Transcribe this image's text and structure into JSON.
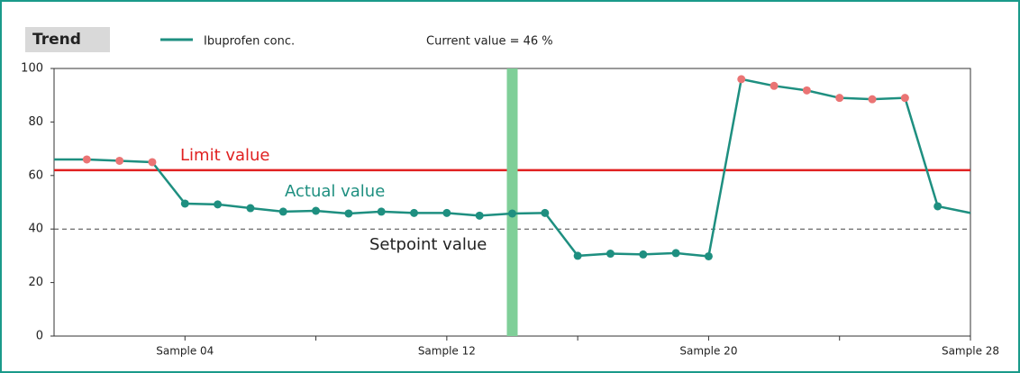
{
  "chart_data": {
    "type": "line",
    "panel_title": "Trend",
    "status": "Current value = 46 %",
    "x": [
      0,
      1,
      2,
      3,
      4,
      5,
      6,
      7,
      8,
      9,
      10,
      11,
      12,
      13,
      14,
      15,
      16,
      17,
      18,
      19,
      20,
      21,
      22,
      23,
      24,
      25,
      26,
      27,
      28
    ],
    "series": [
      {
        "name": "Ibuprofen conc.",
        "color": "#1e8f80",
        "values": [
          66,
          66,
          65.5,
          65,
          49.5,
          49.2,
          47.8,
          46.5,
          46.8,
          45.8,
          46.5,
          46,
          46,
          45,
          45.8,
          46,
          30,
          30.8,
          30.5,
          31,
          29.8,
          96,
          93.5,
          91.8,
          89,
          88.5,
          89,
          48.5,
          46
        ]
      }
    ],
    "alert_color": "#ea7474",
    "limit": {
      "value": 62,
      "label": "Limit value",
      "color": "#e02020"
    },
    "setpoint": {
      "value": 40,
      "label": "Setpoint value"
    },
    "actual_label": "Actual value",
    "cursor": {
      "x": 14,
      "color": "#7fcf98"
    },
    "xlim": [
      0,
      28
    ],
    "xticks": [
      {
        "value": 4,
        "label": "Sample 04"
      },
      {
        "value": 12,
        "label": "Sample 12"
      },
      {
        "value": 20,
        "label": "Sample 20"
      },
      {
        "value": 28,
        "label": "Sample 28"
      }
    ],
    "xminor": [
      8,
      16,
      24
    ],
    "ylim": [
      0,
      100
    ],
    "yticks": [
      0,
      20,
      40,
      60,
      80,
      100
    ]
  }
}
